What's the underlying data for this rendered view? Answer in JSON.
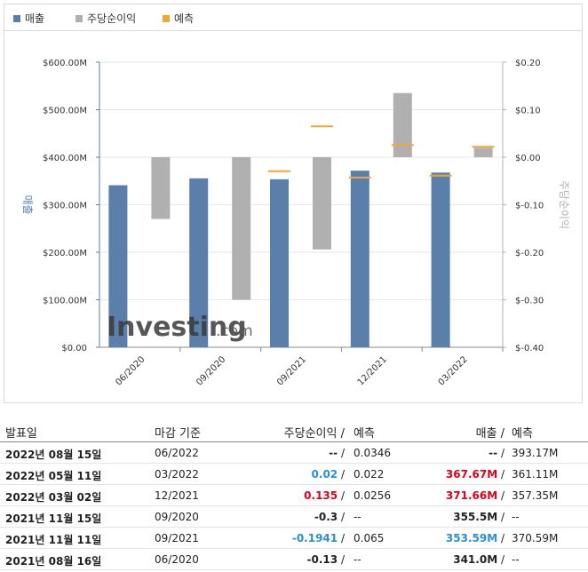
{
  "legend": [
    {
      "label": "매출",
      "color": "#5b7fab"
    },
    {
      "label": "주당순이익",
      "color": "#b0b0b0"
    },
    {
      "label": "예측",
      "color": "#f0a830"
    }
  ],
  "watermark": {
    "brand": "Investing",
    "suffix": ".com"
  },
  "chart_data": {
    "type": "bar",
    "categories": [
      "06/2020",
      "09/2020",
      "09/2021",
      "12/2021",
      "03/2022"
    ],
    "ylabel": "매출",
    "y2label": "주당순이익",
    "ylim": [
      0,
      600
    ],
    "y2lim": [
      -0.4,
      0.2
    ],
    "y_ticks": [
      "$0.00",
      "$100.00M",
      "$200.00M",
      "$300.00M",
      "$400.00M",
      "$500.00M",
      "$600.00M"
    ],
    "y2_ticks": [
      "$-0.40",
      "$-0.30",
      "$-0.20",
      "$-0.10",
      "$0.00",
      "$0.10",
      "$0.20"
    ],
    "series": [
      {
        "name": "매출",
        "unit": "M",
        "values": [
          341.0,
          355.5,
          353.59,
          371.66,
          367.67
        ],
        "forecast": [
          null,
          null,
          370.59,
          357.35,
          361.11
        ]
      },
      {
        "name": "주당순이익",
        "values": [
          -0.13,
          -0.3,
          -0.1941,
          0.135,
          0.02
        ],
        "forecast": [
          null,
          null,
          0.065,
          0.0256,
          0.022
        ]
      }
    ]
  },
  "table": {
    "headers": {
      "date": "발표일",
      "period": "마감 기준",
      "eps": "주당순이익",
      "sep1": " /",
      "eps_forecast": "예측",
      "revenue": "매출",
      "sep2": " /",
      "revenue_forecast": "예측"
    },
    "rows": [
      {
        "date": "2022년 08월 15일",
        "period": "06/2022",
        "eps": "--",
        "eps_forecast": "0.0346",
        "revenue": "--",
        "revenue_forecast": "393.17M",
        "eps_trend": "",
        "rev_trend": ""
      },
      {
        "date": "2022년 05월 11일",
        "period": "03/2022",
        "eps": "0.02",
        "eps_forecast": "0.022",
        "revenue": "367.67M",
        "revenue_forecast": "361.11M",
        "eps_trend": "down",
        "rev_trend": "up"
      },
      {
        "date": "2022년 03월 02일",
        "period": "12/2021",
        "eps": "0.135",
        "eps_forecast": "0.0256",
        "revenue": "371.66M",
        "revenue_forecast": "357.35M",
        "eps_trend": "up",
        "rev_trend": "up"
      },
      {
        "date": "2021년 11월 15일",
        "period": "09/2020",
        "eps": "-0.3",
        "eps_forecast": "--",
        "revenue": "355.5M",
        "revenue_forecast": "--",
        "eps_trend": "",
        "rev_trend": ""
      },
      {
        "date": "2021년 11월 11일",
        "period": "09/2021",
        "eps": "-0.1941",
        "eps_forecast": "0.065",
        "revenue": "353.59M",
        "revenue_forecast": "370.59M",
        "eps_trend": "down",
        "rev_trend": "down"
      },
      {
        "date": "2021년 08월 16일",
        "period": "06/2020",
        "eps": "-0.13",
        "eps_forecast": "--",
        "revenue": "341.0M",
        "revenue_forecast": "--",
        "eps_trend": "",
        "rev_trend": ""
      }
    ]
  }
}
